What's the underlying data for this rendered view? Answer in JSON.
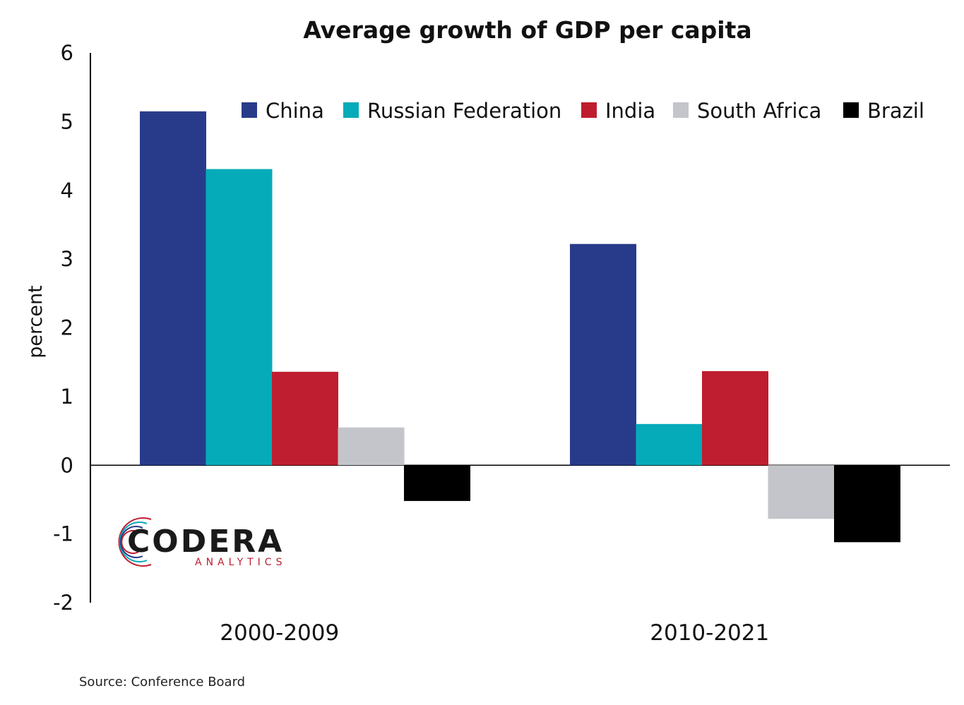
{
  "chart_data": {
    "type": "bar",
    "title": "Average growth of GDP per capita",
    "ylabel": "percent",
    "xlabel": "",
    "categories": [
      "2000-2009",
      "2010-2021"
    ],
    "ylim": [
      -2,
      6
    ],
    "yticks": [
      -2,
      -1,
      0,
      1,
      2,
      3,
      4,
      5,
      6
    ],
    "legend_position": "top-right",
    "series": [
      {
        "name": "China",
        "color": "#283b8a",
        "values": [
          5.15,
          3.22
        ]
      },
      {
        "name": "Russian Federation",
        "color": "#05abb9",
        "values": [
          4.31,
          0.6
        ]
      },
      {
        "name": "India",
        "color": "#be1e2f",
        "values": [
          1.36,
          1.37
        ]
      },
      {
        "name": "South Africa",
        "color": "#c3c5ca",
        "values": [
          0.55,
          -0.78
        ]
      },
      {
        "name": "Brazil",
        "color": "#000000",
        "values": [
          -0.52,
          -1.12
        ]
      }
    ]
  },
  "source": "Source: Conference Board",
  "logo": {
    "name": "CODERA",
    "sub": "ANALYTICS"
  }
}
